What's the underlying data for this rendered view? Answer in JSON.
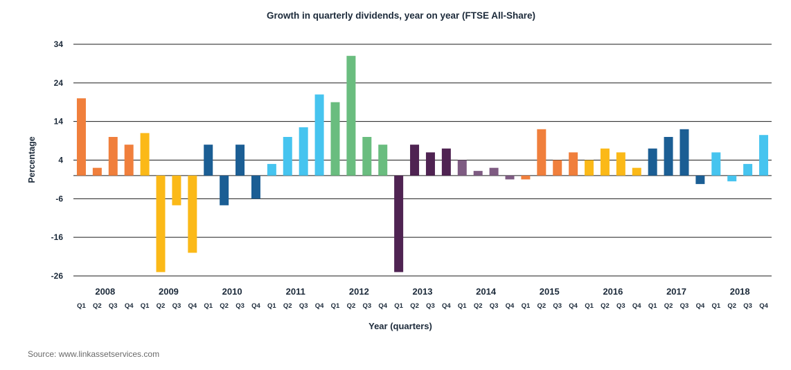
{
  "chart_data": {
    "type": "bar",
    "title": "Growth in quarterly dividends, year on year (FTSE All-Share)",
    "xlabel": "Year (quarters)",
    "ylabel": "Percentage",
    "ylim": [
      -26,
      34
    ],
    "yticks": [
      "34",
      "24",
      "14",
      "4",
      "-6",
      "-16",
      "-26"
    ],
    "ytick_values": [
      34,
      24,
      14,
      4,
      -6,
      -16,
      -26
    ],
    "years": [
      "2008",
      "2009",
      "2010",
      "2011",
      "2012",
      "2013",
      "2014",
      "2015",
      "2016",
      "2017",
      "2018"
    ],
    "categories": [
      "Q1",
      "Q2",
      "Q3",
      "Q4",
      "Q1",
      "Q2",
      "Q3",
      "Q4",
      "Q1",
      "Q2",
      "Q3",
      "Q4",
      "Q1",
      "Q2",
      "Q3",
      "Q4",
      "Q1",
      "Q2",
      "Q3",
      "Q4",
      "Q1",
      "Q2",
      "Q3",
      "Q4",
      "Q1",
      "Q2",
      "Q3",
      "Q4",
      "Q1",
      "Q2",
      "Q3",
      "Q4",
      "Q1",
      "Q2",
      "Q3",
      "Q4",
      "Q1",
      "Q2",
      "Q3",
      "Q4",
      "Q1",
      "Q2",
      "Q3",
      "Q4"
    ],
    "values": [
      20,
      2,
      10,
      8,
      11,
      -25,
      -7.7,
      -20,
      8,
      -7.7,
      8,
      -6,
      3,
      10,
      12.5,
      21,
      19,
      31,
      10,
      8,
      -25,
      8,
      6,
      7,
      4,
      1.2,
      2,
      -1,
      -1,
      12,
      4,
      6,
      4,
      7,
      6,
      2,
      7,
      10,
      12,
      -2.2,
      6,
      -1.5,
      3,
      10.5
    ],
    "bar_colors": [
      "#f07f3c",
      "#f07f3c",
      "#f07f3c",
      "#f07f3c",
      "#fbb918",
      "#fbb918",
      "#fbb918",
      "#fbb918",
      "#1b5e94",
      "#1b5e94",
      "#1b5e94",
      "#1b5e94",
      "#46c4ef",
      "#46c4ef",
      "#46c4ef",
      "#46c4ef",
      "#6abd7f",
      "#6abd7f",
      "#6abd7f",
      "#6abd7f",
      "#4f2352",
      "#4f2352",
      "#4f2352",
      "#4f2352",
      "#7e5b82",
      "#7e5b82",
      "#7e5b82",
      "#7e5b82",
      "#f07f3c",
      "#f07f3c",
      "#f07f3c",
      "#f07f3c",
      "#fbb918",
      "#fbb918",
      "#fbb918",
      "#fbb918",
      "#1b5e94",
      "#1b5e94",
      "#1b5e94",
      "#1b5e94",
      "#46c4ef",
      "#46c4ef",
      "#46c4ef",
      "#46c4ef"
    ],
    "grid": true,
    "legend": "none"
  },
  "source": "Source: www.linkassetservices.com"
}
